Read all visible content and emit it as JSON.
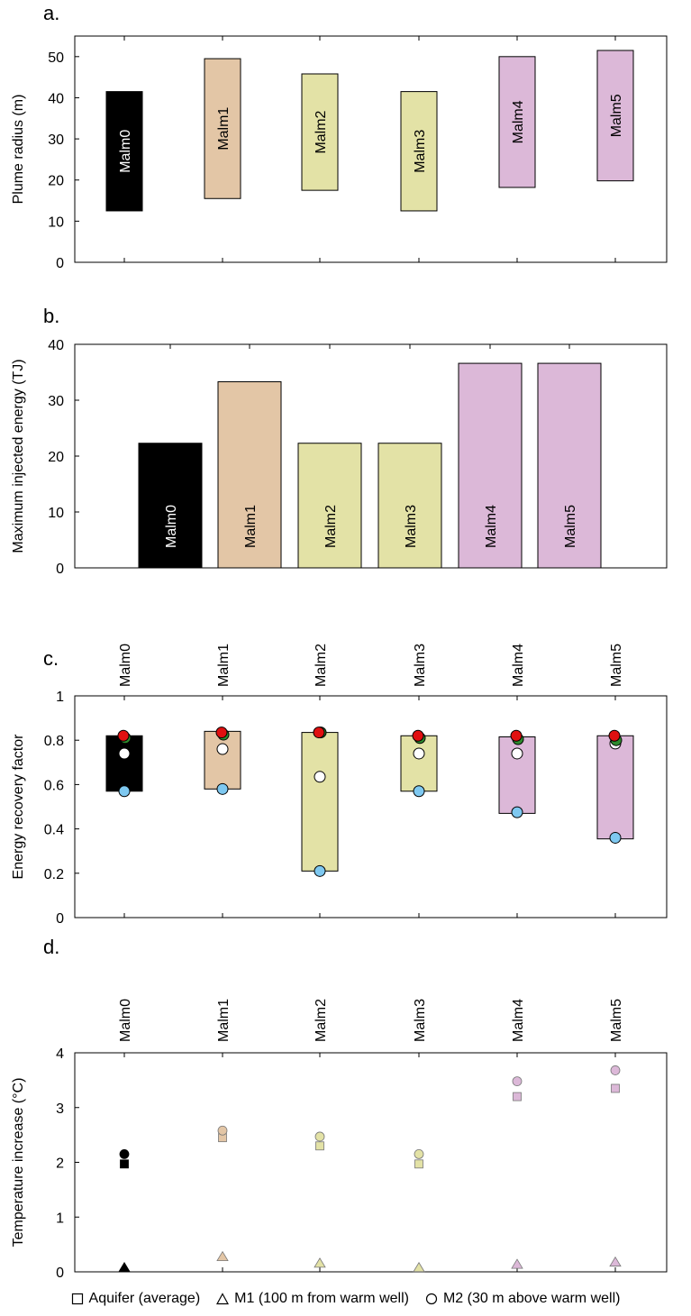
{
  "chart_data": [
    {
      "id": "a",
      "type": "bar",
      "panel_label": "a.",
      "ylabel": "Plume radius (m)",
      "ylim": [
        0,
        55
      ],
      "yticks": [
        0,
        10,
        20,
        30,
        40,
        50
      ],
      "categories": [
        "Malm0",
        "Malm1",
        "Malm2",
        "Malm3",
        "Malm4",
        "Malm5"
      ],
      "ranges": [
        [
          12.5,
          41.5
        ],
        [
          15.5,
          49.5
        ],
        [
          17.5,
          45.8
        ],
        [
          12.5,
          41.5
        ],
        [
          18.2,
          50
        ],
        [
          19.8,
          51.5
        ]
      ],
      "colors": [
        "#000000",
        "#e3c6a6",
        "#e3e2a6",
        "#e3e2a6",
        "#dcb8d8",
        "#dcb8d8"
      ]
    },
    {
      "id": "b",
      "type": "bar",
      "panel_label": "b.",
      "ylabel": "Maximum injected energy (TJ)",
      "ylim": [
        0,
        40
      ],
      "yticks": [
        0,
        10,
        20,
        30,
        40
      ],
      "categories": [
        "Malm0",
        "Malm1",
        "Malm2",
        "Malm3",
        "Malm4",
        "Malm5"
      ],
      "values": [
        22.3,
        33.3,
        22.3,
        22.3,
        36.6,
        36.6
      ],
      "colors": [
        "#000000",
        "#e3c6a6",
        "#e3e2a6",
        "#e3e2a6",
        "#dcb8d8",
        "#dcb8d8"
      ]
    },
    {
      "id": "c",
      "type": "bar",
      "panel_label": "c.",
      "ylabel": "Energy recovery factor",
      "ylim": [
        0,
        1
      ],
      "yticks": [
        "0",
        "0.2",
        "0.4",
        "0.6",
        "0.8",
        "1"
      ],
      "categories": [
        "Malm0",
        "Malm1",
        "Malm2",
        "Malm3",
        "Malm4",
        "Malm5"
      ],
      "ranges": [
        [
          0.57,
          0.82
        ],
        [
          0.58,
          0.84
        ],
        [
          0.21,
          0.835
        ],
        [
          0.57,
          0.82
        ],
        [
          0.47,
          0.815
        ],
        [
          0.355,
          0.82
        ]
      ],
      "colors": [
        "#000000",
        "#e3c6a6",
        "#e3e2a6",
        "#e3e2a6",
        "#dcb8d8",
        "#dcb8d8"
      ],
      "points": {
        "blue": [
          0.57,
          0.58,
          0.21,
          0.57,
          0.475,
          0.36
        ],
        "white": [
          0.74,
          0.76,
          0.635,
          0.74,
          0.74,
          0.785
        ],
        "green": [
          0.81,
          0.825,
          0.835,
          0.81,
          0.805,
          0.8
        ],
        "red": [
          0.82,
          0.835,
          0.835,
          0.82,
          0.82,
          0.82
        ]
      },
      "point_colors": {
        "blue": "#7ec8f0",
        "white": "#ffffff",
        "green": "#2e8b2e",
        "red": "#e01010"
      }
    },
    {
      "id": "d",
      "type": "scatter",
      "panel_label": "d.",
      "ylabel": "Temperature increase (°C)",
      "ylim": [
        0,
        4
      ],
      "yticks": [
        0,
        1,
        2,
        3,
        4
      ],
      "categories": [
        "Malm0",
        "Malm1",
        "Malm2",
        "Malm3",
        "Malm4",
        "Malm5"
      ],
      "colors": [
        "#000000",
        "#e3c6a6",
        "#e3e2a6",
        "#e3e2a6",
        "#dcb8d8",
        "#dcb8d8"
      ],
      "series": [
        {
          "marker": "square",
          "values": [
            1.97,
            2.45,
            2.3,
            1.97,
            3.2,
            3.35
          ]
        },
        {
          "marker": "triangle",
          "values": [
            0.07,
            0.27,
            0.15,
            0.07,
            0.13,
            0.17
          ]
        },
        {
          "marker": "circle",
          "values": [
            2.15,
            2.58,
            2.47,
            2.15,
            3.48,
            3.68
          ]
        }
      ]
    }
  ],
  "legend": [
    {
      "marker": "square",
      "label": "Aquifer (average)"
    },
    {
      "marker": "triangle",
      "label": "M1 (100 m from warm well)"
    },
    {
      "marker": "circle",
      "label": "M2 (30 m above warm well)"
    }
  ]
}
